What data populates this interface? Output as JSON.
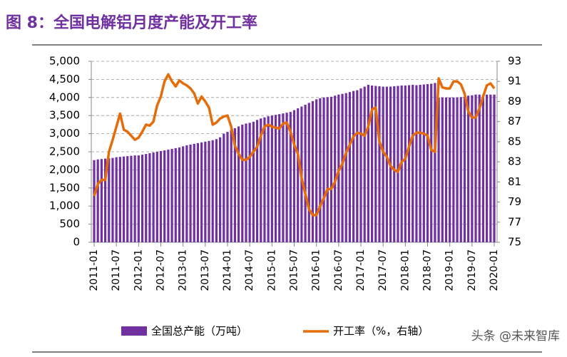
{
  "chart_data": {
    "type": "bar-line",
    "title": "图 8：全国电解铝月度产能及开工率",
    "categories": [
      "2011-01",
      null,
      null,
      null,
      null,
      null,
      "2011-07",
      null,
      null,
      null,
      null,
      null,
      "2012-01",
      null,
      null,
      null,
      null,
      null,
      "2012-07",
      null,
      null,
      null,
      null,
      null,
      "2013-01",
      null,
      null,
      null,
      null,
      null,
      "2013-07",
      null,
      null,
      null,
      null,
      null,
      "2014-01",
      null,
      null,
      null,
      null,
      null,
      "2014-07",
      null,
      null,
      null,
      null,
      null,
      "2015-01",
      null,
      null,
      null,
      null,
      null,
      "2015-07",
      null,
      null,
      null,
      null,
      null,
      "2016-01",
      null,
      null,
      null,
      null,
      null,
      "2016-07",
      null,
      null,
      null,
      null,
      null,
      "2017-01",
      null,
      null,
      null,
      null,
      null,
      "2017-07",
      null,
      null,
      null,
      null,
      null,
      "2018-01",
      null,
      null,
      null,
      null,
      null,
      "2018-07",
      null,
      null,
      null,
      null,
      null,
      "2019-01",
      null,
      null,
      null,
      null,
      null,
      "2019-07",
      null,
      null,
      null,
      null,
      null,
      "2020-01"
    ],
    "series": [
      {
        "name": "全国总产能（万吨）",
        "type": "bar",
        "color": "#7030a0",
        "values": [
          2270,
          2290,
          2300,
          2310,
          2320,
          2330,
          2350,
          2360,
          2370,
          2380,
          2390,
          2400,
          2400,
          2420,
          2440,
          2460,
          2480,
          2500,
          2520,
          2540,
          2560,
          2580,
          2600,
          2620,
          2650,
          2680,
          2700,
          2720,
          2740,
          2760,
          2780,
          2800,
          2820,
          2850,
          2900,
          3000,
          3050,
          3100,
          3150,
          3200,
          3250,
          3280,
          3300,
          3330,
          3380,
          3420,
          3450,
          3480,
          3500,
          3520,
          3540,
          3560,
          3580,
          3600,
          3650,
          3700,
          3750,
          3800,
          3850,
          3900,
          3950,
          3980,
          4000,
          4010,
          4020,
          4050,
          4080,
          4100,
          4120,
          4150,
          4180,
          4200,
          4250,
          4300,
          4350,
          4330,
          4320,
          4310,
          4300,
          4300,
          4300,
          4310,
          4320,
          4330,
          4330,
          4340,
          4350,
          4340,
          4350,
          4360,
          4370,
          4380,
          4400,
          4000,
          4000,
          4000,
          4000,
          4000,
          4000,
          4010,
          4020,
          4050,
          4060,
          4080,
          4080,
          4080,
          4080,
          4080,
          4080
        ]
      },
      {
        "name": "开工率（%，右轴）",
        "type": "line",
        "axis": "y2",
        "color": "#e46c0a",
        "values": [
          79.6,
          80.8,
          81.2,
          81.2,
          84.0,
          85.2,
          86.5,
          87.8,
          86.2,
          86.0,
          85.6,
          85.2,
          85.4,
          86.0,
          86.7,
          86.6,
          87.0,
          88.6,
          89.5,
          91.0,
          91.7,
          91.0,
          90.5,
          91.1,
          90.8,
          90.6,
          90.3,
          89.8,
          88.8,
          89.5,
          89.0,
          88.4,
          86.7,
          86.9,
          87.3,
          87.5,
          87.6,
          86.5,
          84.6,
          83.8,
          83.2,
          83.2,
          83.5,
          84.0,
          84.5,
          85.6,
          86.5,
          86.7,
          86.5,
          86.4,
          86.3,
          86.8,
          86.9,
          86.0,
          84.7,
          83.8,
          81.4,
          79.8,
          78.3,
          77.7,
          77.7,
          78.6,
          79.4,
          80.3,
          80.3,
          81.0,
          82.1,
          82.8,
          83.9,
          84.7,
          85.5,
          85.9,
          85.8,
          85.6,
          86.5,
          88.2,
          88.4,
          85.0,
          84.0,
          83.5,
          82.6,
          82.2,
          82.0,
          83.0,
          83.3,
          84.5,
          85.6,
          85.9,
          85.9,
          85.8,
          85.6,
          84.2,
          84.0,
          91.3,
          90.4,
          90.3,
          90.3,
          91.0,
          91.0,
          90.7,
          89.8,
          88.0,
          87.4,
          87.4,
          88.3,
          89.5,
          90.6,
          90.8,
          90.3
        ]
      }
    ],
    "ylim": [
      0,
      5000
    ],
    "yticks": [
      0,
      500,
      {
        "value": 1000,
        "label": "1,000"
      },
      {
        "value": 1500,
        "label": "1,500"
      },
      {
        "value": 2000,
        "label": "2,000"
      },
      {
        "value": 2500,
        "label": "2,500"
      },
      {
        "value": 3000,
        "label": "3,000"
      },
      {
        "value": 3500,
        "label": "3,500"
      },
      {
        "value": 4000,
        "label": "4,000"
      },
      {
        "value": 4500,
        "label": "4,500"
      },
      {
        "value": 5000,
        "label": "5,000"
      }
    ],
    "y2lim": [
      75,
      93
    ],
    "y2ticks": [
      75,
      77,
      79,
      81,
      83,
      85,
      87,
      89,
      91,
      93
    ],
    "grid": true,
    "legend": "bottom",
    "watermark": "头条 @未来智库"
  }
}
